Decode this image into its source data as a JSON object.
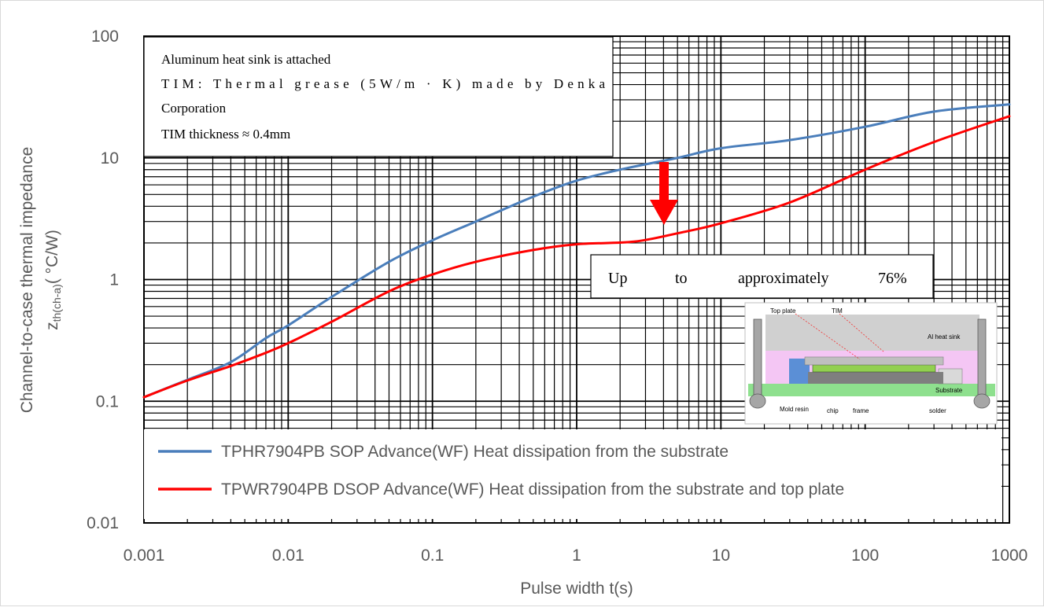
{
  "chart_data": {
    "type": "line",
    "x_scale": "log",
    "y_scale": "log",
    "xlim": [
      0.001,
      1000
    ],
    "ylim": [
      0.01,
      100
    ],
    "xlabel": "Pulse width t(s)",
    "ylabel_main": "Channel-to-case thermal impedance",
    "ylabel_symbol": "z",
    "ylabel_subscript": "th(ch-a)",
    "ylabel_unit": "( °C/W)",
    "x_ticks": [
      {
        "value": 0.001,
        "label": "0.001"
      },
      {
        "value": 0.01,
        "label": "0.01"
      },
      {
        "value": 0.1,
        "label": "0.1"
      },
      {
        "value": 1,
        "label": "1"
      },
      {
        "value": 10,
        "label": "10"
      },
      {
        "value": 100,
        "label": "100"
      },
      {
        "value": 1000,
        "label": "1000"
      }
    ],
    "y_ticks": [
      {
        "value": 0.01,
        "label": "0.01"
      },
      {
        "value": 0.1,
        "label": "0.1"
      },
      {
        "value": 1,
        "label": "1"
      },
      {
        "value": 10,
        "label": "10"
      },
      {
        "value": 100,
        "label": "100"
      }
    ],
    "grid": true,
    "legend_position": "bottom-inside",
    "series": [
      {
        "name": "TPHR7904PB SOP Advance(WF) Heat dissipation from the substrate",
        "color": "#4a7ebb",
        "points": [
          [
            0.001,
            0.108
          ],
          [
            0.002,
            0.15
          ],
          [
            0.004,
            0.21
          ],
          [
            0.007,
            0.33
          ],
          [
            0.01,
            0.42
          ],
          [
            0.02,
            0.72
          ],
          [
            0.05,
            1.4
          ],
          [
            0.1,
            2.1
          ],
          [
            0.2,
            3.0
          ],
          [
            0.5,
            4.8
          ],
          [
            1,
            6.5
          ],
          [
            2,
            8.0
          ],
          [
            5,
            10.0
          ],
          [
            10,
            12.0
          ],
          [
            30,
            14.0
          ],
          [
            100,
            18.0
          ],
          [
            300,
            24.0
          ],
          [
            1000,
            27.5
          ]
        ]
      },
      {
        "name": "TPWR7904PB DSOP Advance(WF) Heat dissipation from the substrate and top plate",
        "color": "#ff0000",
        "points": [
          [
            0.001,
            0.108
          ],
          [
            0.002,
            0.148
          ],
          [
            0.004,
            0.195
          ],
          [
            0.007,
            0.25
          ],
          [
            0.01,
            0.3
          ],
          [
            0.02,
            0.45
          ],
          [
            0.05,
            0.8
          ],
          [
            0.1,
            1.1
          ],
          [
            0.2,
            1.4
          ],
          [
            0.5,
            1.75
          ],
          [
            1,
            1.95
          ],
          [
            2.5,
            2.05
          ],
          [
            5,
            2.4
          ],
          [
            10,
            2.9
          ],
          [
            30,
            4.3
          ],
          [
            100,
            8.0
          ],
          [
            300,
            13.5
          ],
          [
            1000,
            22.0
          ]
        ]
      }
    ],
    "annotations": {
      "note_lines": [
        "Aluminum heat sink is attached",
        "TIM: Thermal grease (5W/m · K) made by Denka",
        "Corporation",
        "TIM thickness ≈ 0.4mm"
      ],
      "reduction_callout": [
        "Up",
        "to",
        "approximately",
        "76%"
      ],
      "arrow_color": "#ff0000",
      "inset_labels": {
        "top_plate": "Top plate",
        "tim": "TIM",
        "heat_sink": "Al heat sink",
        "substrate": "Substrate",
        "mold_resin": "Mold resin",
        "chip": "chip",
        "frame": "frame",
        "solder": "solder"
      }
    }
  }
}
